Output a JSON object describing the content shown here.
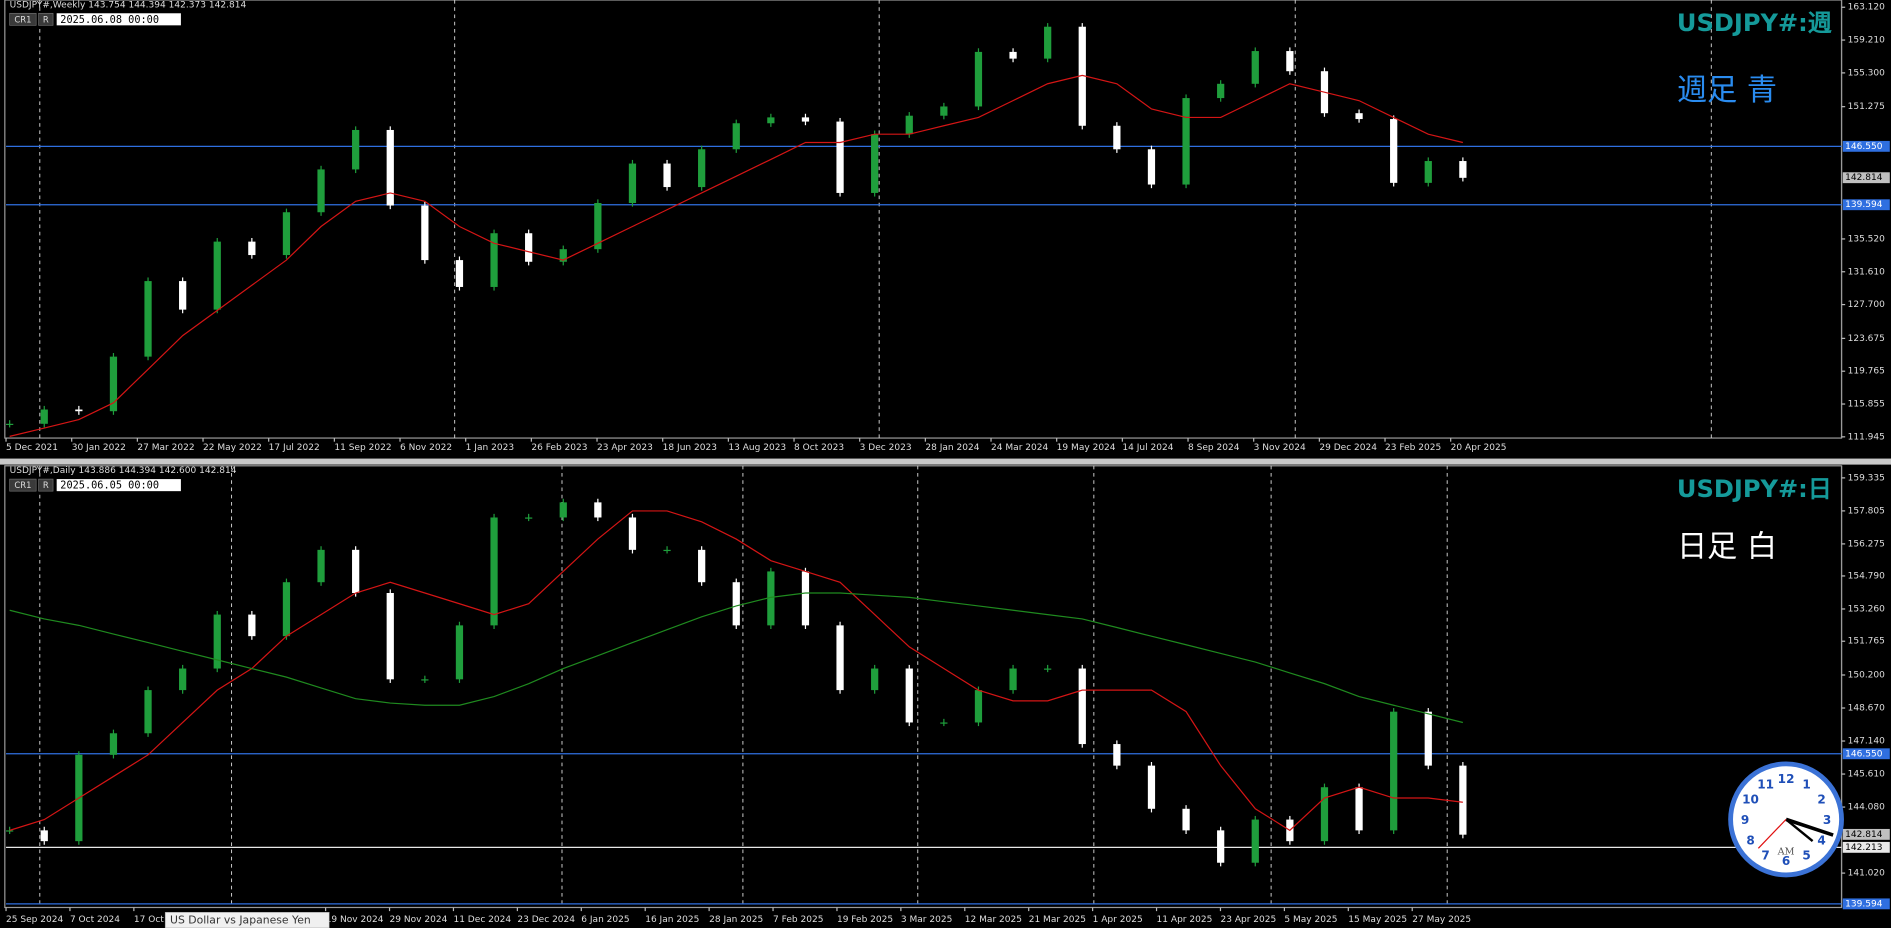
{
  "panels": [
    {
      "header": "USDJPY#,Weekly  143.754 144.394 142.373 142.814",
      "badges": [
        "CR1",
        "R"
      ],
      "time": "2025.06.08 00:00",
      "title": "USDJPY#:週",
      "note": "週足  青",
      "note_color": "#2a8cf0",
      "ylim": [
        111.945,
        163.12
      ],
      "yticks": [
        {
          "value": 163.12,
          "label": "163.120"
        },
        {
          "value": 159.21,
          "label": "159.210"
        },
        {
          "value": 155.3,
          "label": "155.300"
        },
        {
          "value": 151.275,
          "label": "151.275"
        },
        {
          "value": 135.52,
          "label": "135.520"
        },
        {
          "value": 131.61,
          "label": "131.610"
        },
        {
          "value": 127.7,
          "label": "127.700"
        },
        {
          "value": 123.675,
          "label": "123.675"
        },
        {
          "value": 119.765,
          "label": "119.765"
        },
        {
          "value": 115.855,
          "label": "115.855"
        },
        {
          "value": 111.945,
          "label": "111.945"
        }
      ],
      "hlines": [
        {
          "value": 146.55,
          "label": "146.550",
          "color": "#2f6fe0"
        },
        {
          "value": 139.594,
          "label": "139.594",
          "color": "#2f6fe0"
        }
      ],
      "price": {
        "value": 142.814,
        "label": "142.814"
      },
      "categories": [
        "5 Dec 2021",
        "30 Jan 2022",
        "27 Mar 2022",
        "22 May 2022",
        "17 Jul 2022",
        "11 Sep 2022",
        "6 Nov 2022",
        "1 Jan 2023",
        "26 Feb 2023",
        "23 Apr 2023",
        "18 Jun 2023",
        "13 Aug 2023",
        "8 Oct 2023",
        "3 Dec 2023",
        "28 Jan 2024",
        "24 Mar 2024",
        "19 May 2024",
        "14 Jul 2024",
        "8 Sep 2024",
        "3 Nov 2024",
        "29 Dec 2024",
        "23 Feb 2025",
        "20 Apr 2025"
      ],
      "up_color": "#1f9e3c",
      "down_color": "#ffffff",
      "closes": [
        113.5,
        115.2,
        115.0,
        121.5,
        130.5,
        127.1,
        135.2,
        133.6,
        138.7,
        143.8,
        148.5,
        139.5,
        133.0,
        129.8,
        136.2,
        132.8,
        134.3,
        139.8,
        144.5,
        141.7,
        146.2,
        149.3,
        150.0,
        149.5,
        141.0,
        148.0,
        150.2,
        151.3,
        157.8,
        157.0,
        160.8,
        149.0,
        146.2,
        142.0,
        152.3,
        154.0,
        157.9,
        155.5,
        150.5,
        149.8,
        142.2,
        144.8,
        142.8
      ],
      "averages": [
        {
          "color": "#d41515",
          "values": [
            112,
            113,
            114,
            116,
            120,
            124,
            127,
            130,
            133,
            137,
            140,
            141,
            140,
            137,
            135,
            134,
            133,
            135,
            137,
            139,
            141,
            143,
            145,
            147,
            147,
            148,
            148,
            149,
            150,
            152,
            154,
            155,
            154,
            151,
            150,
            150,
            152,
            154,
            153,
            152,
            150,
            148,
            147
          ]
        }
      ]
    },
    {
      "header": "USDJPY#,Daily  143.886 144.394 142.600 142.814",
      "badges": [
        "CR1",
        "R"
      ],
      "time": "2025.06.05 00:00",
      "title": "USDJPY#:日",
      "note": "日足  白",
      "note_color": "#ffffff",
      "ylim": [
        139.594,
        159.335
      ],
      "yticks": [
        {
          "value": 159.335,
          "label": "159.335"
        },
        {
          "value": 157.805,
          "label": "157.805"
        },
        {
          "value": 156.275,
          "label": "156.275"
        },
        {
          "value": 154.79,
          "label": "154.790"
        },
        {
          "value": 153.26,
          "label": "153.260"
        },
        {
          "value": 151.765,
          "label": "151.765"
        },
        {
          "value": 150.2,
          "label": "150.200"
        },
        {
          "value": 148.67,
          "label": "148.670"
        },
        {
          "value": 147.14,
          "label": "147.140"
        },
        {
          "value": 145.61,
          "label": "145.610"
        },
        {
          "value": 144.08,
          "label": "144.080"
        },
        {
          "value": 141.02,
          "label": "141.020"
        }
      ],
      "hlines": [
        {
          "value": 146.55,
          "label": "146.550",
          "color": "#2f6fe0"
        },
        {
          "value": 142.213,
          "label": "142.213",
          "color": "#e8e8e8"
        },
        {
          "value": 139.594,
          "label": "139.594",
          "color": "#2f6fe0"
        }
      ],
      "price": {
        "value": 142.814,
        "label": "142.814"
      },
      "categories": [
        "25 Sep 2024",
        "7 Oct 2024",
        "17 Oct 2024",
        null,
        null,
        "19 Nov 2024",
        "29 Nov 2024",
        "11 Dec 2024",
        "23 Dec 2024",
        "6 Jan 2025",
        "16 Jan 2025",
        "28 Jan 2025",
        "7 Feb 2025",
        "19 Feb 2025",
        "3 Mar 2025",
        "12 Mar 2025",
        "21 Mar 2025",
        "1 Apr 2025",
        "11 Apr 2025",
        "23 Apr 2025",
        "5 May 2025",
        "15 May 2025",
        "27 May 2025"
      ],
      "up_color": "#1f9e3c",
      "down_color": "#ffffff",
      "closes": [
        143.0,
        142.5,
        146.5,
        147.5,
        149.5,
        150.5,
        153.0,
        152.0,
        154.5,
        156.0,
        154.0,
        150.0,
        150.0,
        152.5,
        157.5,
        157.5,
        158.2,
        157.5,
        156.0,
        156.0,
        154.5,
        152.5,
        155.0,
        152.5,
        149.5,
        150.5,
        148.0,
        148.0,
        149.5,
        150.5,
        150.5,
        147.0,
        146.0,
        144.0,
        143.0,
        141.5,
        143.5,
        142.5,
        145.0,
        143.0,
        148.5,
        146.0,
        142.8
      ],
      "averages": [
        {
          "color": "#d41515",
          "values": [
            143,
            143.5,
            144.5,
            145.5,
            146.5,
            148,
            149.5,
            150.5,
            152,
            153,
            154,
            154.5,
            154,
            153.5,
            153,
            153.5,
            155,
            156.5,
            157.8,
            157.8,
            157.3,
            156.5,
            155.5,
            155,
            154.5,
            153,
            151.5,
            150.5,
            149.5,
            149,
            149,
            149.5,
            149.5,
            149.5,
            148.5,
            146,
            144,
            143,
            144.5,
            145,
            144.5,
            144.5,
            144.3
          ]
        },
        {
          "color": "#1f8a1f",
          "values": [
            153.2,
            152.8,
            152.5,
            152.1,
            151.7,
            151.3,
            150.9,
            150.5,
            150.1,
            149.6,
            149.1,
            148.9,
            148.8,
            148.8,
            149.2,
            149.8,
            150.5,
            151.1,
            151.7,
            152.3,
            152.9,
            153.4,
            153.8,
            154.0,
            154.0,
            153.9,
            153.8,
            153.6,
            153.4,
            153.2,
            153.0,
            152.8,
            152.4,
            152.0,
            151.6,
            151.2,
            150.8,
            150.3,
            149.8,
            149.2,
            148.8,
            148.4,
            148.0
          ]
        }
      ]
    }
  ],
  "tooltip": "US Dollar vs Japanese Yen",
  "clock": {
    "numbers": [
      12,
      1,
      2,
      3,
      4,
      5,
      6,
      7,
      8,
      9,
      10,
      11
    ],
    "label": "AM"
  }
}
